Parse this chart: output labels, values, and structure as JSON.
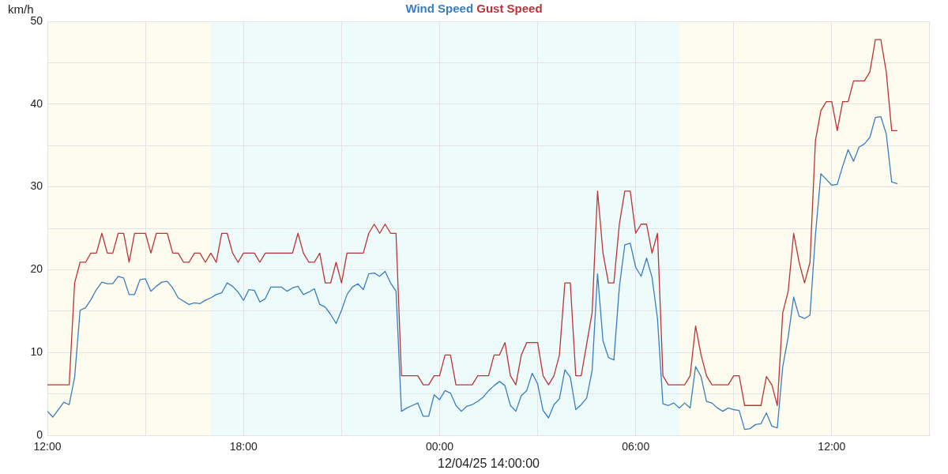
{
  "chart_data": {
    "type": "line",
    "xlabel": "12/04/25 14:00:00",
    "ylabel": "km/h",
    "x": [
      "--04-11T12:00",
      "--04-11T12:10",
      "--04-11T12:20",
      "--04-11T12:30",
      "--04-11T12:40",
      "--04-11T12:50",
      "--04-11T13:00",
      "--04-11T13:10",
      "--04-11T13:20",
      "--04-11T13:30",
      "--04-11T13:40",
      "--04-11T13:50",
      "--04-11T14:00",
      "--04-11T14:10",
      "--04-11T14:20",
      "--04-11T14:30",
      "--04-11T14:40",
      "--04-11T14:50",
      "--04-11T15:00",
      "--04-11T15:10",
      "--04-11T15:20",
      "--04-11T15:30",
      "--04-11T15:40",
      "--04-11T15:50",
      "--04-11T16:00",
      "--04-11T16:10",
      "--04-11T16:20",
      "--04-11T16:30",
      "--04-11T16:40",
      "--04-11T16:50",
      "--04-11T17:00",
      "--04-11T17:10",
      "--04-11T17:20",
      "--04-11T17:30",
      "--04-11T17:40",
      "--04-11T17:50",
      "--04-11T18:00",
      "--04-11T18:10",
      "--04-11T18:20",
      "--04-11T18:30",
      "--04-11T18:40",
      "--04-11T18:50",
      "--04-11T19:00",
      "--04-11T19:10",
      "--04-11T19:20",
      "--04-11T19:30",
      "--04-11T19:40",
      "--04-11T19:50",
      "--04-11T20:00",
      "--04-11T20:10",
      "--04-11T20:20",
      "--04-11T20:30",
      "--04-11T20:40",
      "--04-11T20:50",
      "--04-11T21:00",
      "--04-11T21:10",
      "--04-11T21:20",
      "--04-11T21:30",
      "--04-11T21:40",
      "--04-11T21:50",
      "--04-11T22:00",
      "--04-11T22:10",
      "--04-11T22:20",
      "--04-11T22:30",
      "--04-11T22:40",
      "--04-11T22:50",
      "--04-11T23:00",
      "--04-11T23:10",
      "--04-11T23:20",
      "--04-11T23:30",
      "--04-11T23:40",
      "--04-11T23:50",
      "--04-12T00:00",
      "--04-12T00:10",
      "--04-12T00:20",
      "--04-12T00:30",
      "--04-12T00:40",
      "--04-12T00:50",
      "--04-12T01:00",
      "--04-12T01:10",
      "--04-12T01:20",
      "--04-12T01:30",
      "--04-12T01:40",
      "--04-12T01:50",
      "--04-12T02:00",
      "--04-12T02:10",
      "--04-12T02:20",
      "--04-12T02:30",
      "--04-12T02:40",
      "--04-12T02:50",
      "--04-12T03:00",
      "--04-12T03:10",
      "--04-12T03:20",
      "--04-12T03:30",
      "--04-12T03:40",
      "--04-12T03:50",
      "--04-12T04:00",
      "--04-12T04:10",
      "--04-12T04:20",
      "--04-12T04:30",
      "--04-12T04:40",
      "--04-12T04:50",
      "--04-12T05:00",
      "--04-12T05:10",
      "--04-12T05:20",
      "--04-12T05:30",
      "--04-12T05:40",
      "--04-12T05:50",
      "--04-12T06:00",
      "--04-12T06:10",
      "--04-12T06:20",
      "--04-12T06:30",
      "--04-12T06:40",
      "--04-12T06:50",
      "--04-12T07:00",
      "--04-12T07:10",
      "--04-12T07:20",
      "--04-12T07:30",
      "--04-12T07:40",
      "--04-12T07:50",
      "--04-12T08:00",
      "--04-12T08:10",
      "--04-12T08:20",
      "--04-12T08:30",
      "--04-12T08:40",
      "--04-12T08:50",
      "--04-12T09:00",
      "--04-12T09:10",
      "--04-12T09:20",
      "--04-12T09:30",
      "--04-12T09:40",
      "--04-12T09:50",
      "--04-12T10:00",
      "--04-12T10:10",
      "--04-12T10:20",
      "--04-12T10:30",
      "--04-12T10:40",
      "--04-12T10:50",
      "--04-12T11:00",
      "--04-12T11:10",
      "--04-12T11:20",
      "--04-12T11:30",
      "--04-12T11:40",
      "--04-12T11:50",
      "--04-12T12:00",
      "--04-12T12:10",
      "--04-12T12:20",
      "--04-12T12:30",
      "--04-12T12:40",
      "--04-12T12:50",
      "--04-12T13:00",
      "--04-12T13:10",
      "--04-12T13:20",
      "--04-12T13:30",
      "--04-12T13:40",
      "--04-12T13:50",
      "--04-12T14:00"
    ],
    "series": [
      {
        "name": "Wind Speed",
        "color": "#3a7dbf",
        "values": [
          2.9,
          2.2,
          3.1,
          4.0,
          3.7,
          7.0,
          15.1,
          15.4,
          16.4,
          17.6,
          18.5,
          18.3,
          18.3,
          19.2,
          19.0,
          17.0,
          17.0,
          18.8,
          18.9,
          17.4,
          18.0,
          18.5,
          18.6,
          17.8,
          16.6,
          16.2,
          15.8,
          16.0,
          15.9,
          16.3,
          16.6,
          17.0,
          17.2,
          18.4,
          18.0,
          17.3,
          16.3,
          17.6,
          17.5,
          16.1,
          16.5,
          17.9,
          17.9,
          17.9,
          17.4,
          17.8,
          18.0,
          17.0,
          17.3,
          17.7,
          15.8,
          15.5,
          14.6,
          13.5,
          15.1,
          17.0,
          17.9,
          18.3,
          17.6,
          19.5,
          19.6,
          19.2,
          19.8,
          18.4,
          17.4,
          2.9,
          3.3,
          3.6,
          3.9,
          2.3,
          2.3,
          4.9,
          4.3,
          5.4,
          5.1,
          3.6,
          2.9,
          3.5,
          3.7,
          4.1,
          4.6,
          5.4,
          6.0,
          6.5,
          6.0,
          3.6,
          2.9,
          4.8,
          5.4,
          7.5,
          6.2,
          3.0,
          2.1,
          3.7,
          4.4,
          7.9,
          7.0,
          3.1,
          3.7,
          4.5,
          7.8,
          19.5,
          11.4,
          9.4,
          9.1,
          17.9,
          23.0,
          23.2,
          20.3,
          19.2,
          21.4,
          19.1,
          14.1,
          3.8,
          3.6,
          3.9,
          3.3,
          3.9,
          3.3,
          8.3,
          7.1,
          4.1,
          3.9,
          3.3,
          2.9,
          3.3,
          3.1,
          3.0,
          0.7,
          0.8,
          1.3,
          1.4,
          2.7,
          1.1,
          0.9,
          8.3,
          11.9,
          16.7,
          14.4,
          14.1,
          14.5,
          24.2,
          31.6,
          30.9,
          30.2,
          30.3,
          32.5,
          34.5,
          33.1,
          34.8,
          35.2,
          36.0,
          38.4,
          38.5,
          36.4,
          30.6,
          30.4
        ]
      },
      {
        "name": "Gust Speed",
        "color": "#bb3338",
        "values": [
          6.1,
          6.1,
          6.1,
          6.1,
          6.1,
          18.4,
          20.9,
          20.9,
          22.0,
          22.0,
          24.4,
          22.0,
          22.0,
          24.4,
          24.4,
          20.9,
          24.4,
          24.4,
          24.4,
          22.0,
          24.4,
          24.4,
          24.4,
          22.0,
          22.0,
          20.9,
          20.9,
          22.0,
          22.0,
          20.9,
          22.0,
          20.9,
          24.4,
          24.4,
          22.0,
          20.9,
          22.0,
          22.0,
          22.0,
          20.9,
          22.0,
          22.0,
          22.0,
          22.0,
          22.0,
          22.0,
          24.4,
          22.0,
          20.9,
          20.9,
          22.0,
          18.4,
          18.4,
          20.9,
          18.4,
          22.0,
          22.0,
          22.0,
          22.0,
          24.4,
          25.5,
          24.4,
          25.5,
          24.4,
          24.4,
          7.2,
          7.2,
          7.2,
          7.2,
          6.1,
          6.1,
          7.2,
          7.2,
          9.7,
          9.7,
          6.1,
          6.1,
          6.1,
          6.1,
          7.2,
          7.2,
          7.2,
          9.7,
          9.7,
          11.2,
          7.2,
          6.1,
          9.7,
          11.2,
          11.2,
          11.2,
          7.2,
          6.1,
          7.2,
          9.7,
          18.4,
          18.4,
          7.2,
          7.2,
          11.0,
          14.8,
          29.5,
          22.0,
          18.4,
          18.4,
          25.5,
          29.5,
          29.5,
          24.4,
          25.5,
          25.5,
          22.0,
          24.4,
          7.2,
          6.1,
          6.1,
          6.1,
          6.1,
          7.2,
          13.2,
          9.7,
          7.2,
          6.1,
          6.1,
          6.1,
          6.1,
          7.2,
          7.2,
          3.6,
          3.6,
          3.6,
          3.6,
          7.1,
          6.1,
          3.6,
          14.8,
          17.4,
          24.4,
          20.9,
          18.4,
          20.9,
          35.6,
          39.2,
          40.3,
          40.3,
          36.8,
          40.3,
          40.3,
          42.8,
          42.8,
          42.8,
          43.9,
          47.8,
          47.8,
          43.9,
          36.8,
          36.8
        ]
      }
    ],
    "xlim": [
      "--04-11T12:00",
      "--04-12T15:00"
    ],
    "xticks": [
      {
        "value": "--04-11T12:00",
        "label": "12:00"
      },
      {
        "value": "--04-11T15:00",
        "label": null
      },
      {
        "value": "--04-11T18:00",
        "label": "18:00"
      },
      {
        "value": "--04-11T21:00",
        "label": null
      },
      {
        "value": "--04-12T00:00",
        "label": "00:00"
      },
      {
        "value": "--04-12T03:00",
        "label": null
      },
      {
        "value": "--04-12T06:00",
        "label": "06:00"
      },
      {
        "value": "--04-12T09:00",
        "label": null
      },
      {
        "value": "--04-12T12:00",
        "label": "12:00"
      }
    ],
    "ylim": [
      0,
      50
    ],
    "yticks": [
      0,
      {
        "value": 5,
        "label": null
      },
      10,
      {
        "value": 15,
        "label": null
      },
      20,
      {
        "value": 25,
        "label": null
      },
      30,
      {
        "value": 35,
        "label": null
      },
      40,
      {
        "value": 45,
        "label": null
      },
      50
    ],
    "bands": [
      {
        "axis": "x",
        "from": "--04-11T12:00",
        "to": "--04-11T17:00",
        "color": "#fefcee"
      },
      {
        "axis": "x",
        "from": "--04-11T17:00",
        "to": "--04-12T07:20",
        "color": "#edfbfb"
      },
      {
        "axis": "x",
        "from": "--04-12T07:20",
        "to": "--04-12T15:00",
        "color": "#fefcee"
      }
    ],
    "grid": true,
    "legend": "top"
  }
}
